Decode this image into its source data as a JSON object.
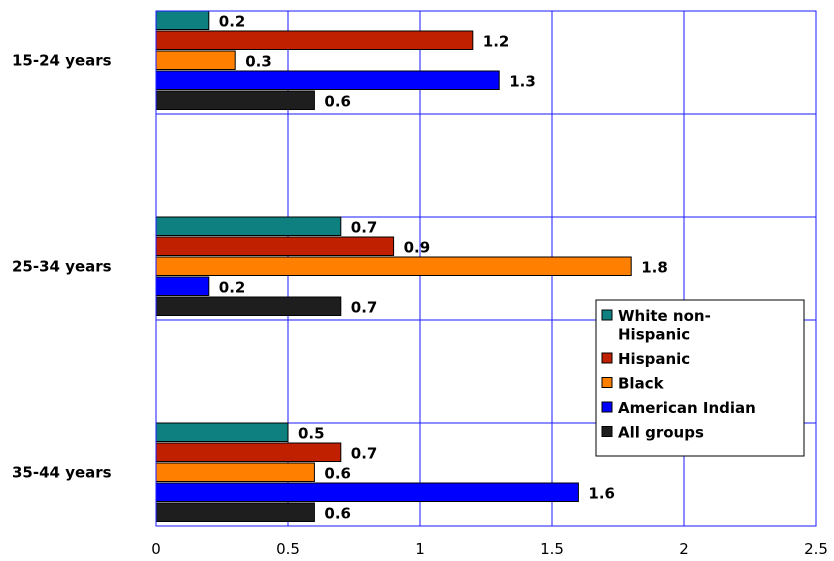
{
  "chart_data": {
    "type": "bar",
    "orientation": "horizontal",
    "title": "",
    "xlabel": "",
    "ylabel": "",
    "categories": [
      "15-24 years",
      "25-34 years",
      "35-44 years"
    ],
    "series": [
      {
        "name": "White non-Hispanic",
        "color": "#0f8080",
        "values": [
          0.2,
          0.7,
          0.5
        ],
        "labels": [
          "0.2",
          "0.7",
          "0.5"
        ]
      },
      {
        "name": "Hispanic",
        "color": "#c02000",
        "values": [
          1.2,
          0.9,
          0.7
        ],
        "labels": [
          "1.2",
          "0.9",
          "0.7"
        ]
      },
      {
        "name": "Black",
        "color": "#ff8000",
        "values": [
          0.3,
          1.8,
          0.6
        ],
        "labels": [
          "0.3",
          "1.8",
          "0.6"
        ]
      },
      {
        "name": "American Indian",
        "color": "#0000ff",
        "values": [
          1.3,
          0.2,
          1.6
        ],
        "labels": [
          "1.3",
          "0.2",
          "1.6"
        ]
      },
      {
        "name": "All groups",
        "color": "#1e1e1e",
        "values": [
          0.6,
          0.7,
          0.6
        ],
        "labels": [
          "0.6",
          "0.7",
          "0.6"
        ]
      }
    ],
    "xlim": [
      0,
      2.5
    ],
    "xticks": [
      "0",
      "0.5",
      "1",
      "1.5",
      "2",
      "2.5"
    ],
    "grid": true,
    "legend": {
      "placement": "right",
      "entries": [
        [
          "White non-",
          "Hispanic"
        ],
        [
          "Hispanic"
        ],
        [
          "Black"
        ],
        [
          "American Indian"
        ],
        [
          "All groups"
        ]
      ]
    }
  }
}
